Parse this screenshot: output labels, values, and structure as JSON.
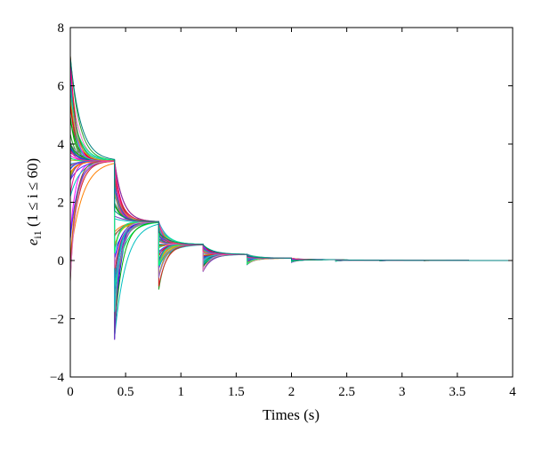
{
  "chart_data": {
    "type": "line",
    "title": "",
    "xlabel": "Times (s)",
    "ylabel_main": "e",
    "ylabel_sub": "i1",
    "ylabel_rest": " (1 ≤ i ≤ 60)",
    "xlim": [
      0,
      4
    ],
    "ylim": [
      -4,
      8
    ],
    "xticks": [
      0,
      0.5,
      1,
      1.5,
      2,
      2.5,
      3,
      3.5,
      4
    ],
    "xtick_labels": [
      "0",
      "0.5",
      "1",
      "1.5",
      "2",
      "2.5",
      "3",
      "3.5",
      "4"
    ],
    "yticks": [
      -4,
      -2,
      0,
      2,
      4,
      6,
      8
    ],
    "ytick_labels": [
      "−4",
      "−2",
      "0",
      "2",
      "4",
      "6",
      "8"
    ],
    "grid": false,
    "legend": "none",
    "series_count": 60,
    "reset_times": [
      0,
      0.4,
      0.8,
      1.2,
      1.6,
      2.0,
      2.4,
      2.8,
      3.2,
      3.6
    ],
    "plateau_values": [
      3.42,
      1.33,
      0.55,
      0.21,
      0.08,
      0.03,
      0.012,
      0.005,
      0.002,
      0.001
    ],
    "initial_value_range": [
      -2,
      7.6
    ],
    "first_reset_min": -2.75,
    "second_reset_min": -1.05,
    "third_reset_min": -0.42,
    "colors": [
      "#0000ff",
      "#ff0000",
      "#00aa00",
      "#ff00ff",
      "#00bfbf",
      "#bfbf00",
      "#7b2fbe",
      "#ff7f00",
      "#1f77b4",
      "#2ca02c",
      "#d62728",
      "#9467bd",
      "#17becf",
      "#bcbd22",
      "#8c564b",
      "#e377c2",
      "#4040ff",
      "#00ff7f",
      "#ff1493",
      "#008080"
    ]
  }
}
